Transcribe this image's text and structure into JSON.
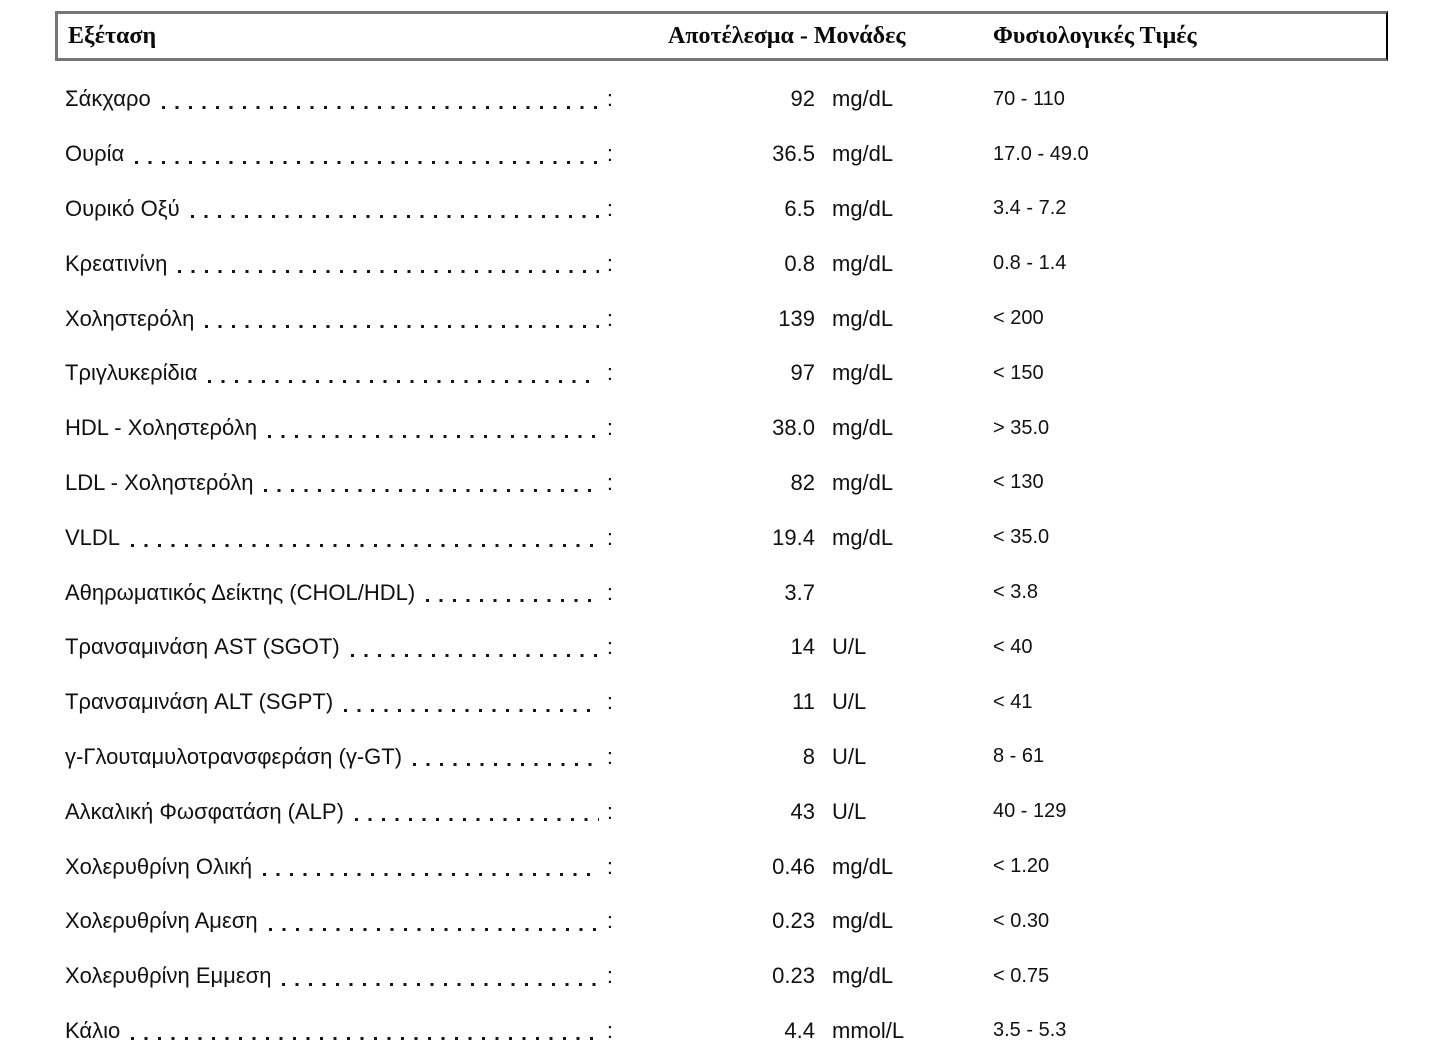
{
  "header": {
    "col_test": "Εξέταση",
    "col_result": "Αποτέλεσμα - Μονάδες",
    "col_range": "Φυσιολογικές Τιμές"
  },
  "separator": ":",
  "rows": [
    {
      "name": "Σάκχαρο",
      "result": "92",
      "unit": "mg/dL",
      "range": "70 - 110"
    },
    {
      "name": "Ουρία",
      "result": "36.5",
      "unit": "mg/dL",
      "range": "17.0 - 49.0"
    },
    {
      "name": "Ουρικό Οξύ",
      "result": "6.5",
      "unit": "mg/dL",
      "range": "3.4 - 7.2"
    },
    {
      "name": "Κρεατινίνη",
      "result": "0.8",
      "unit": "mg/dL",
      "range": "0.8 - 1.4"
    },
    {
      "name": "Χοληστερόλη",
      "result": "139",
      "unit": "mg/dL",
      "range": "< 200"
    },
    {
      "name": "Τριγλυκερίδια",
      "result": "97",
      "unit": "mg/dL",
      "range": "< 150"
    },
    {
      "name": "HDL - Χοληστερόλη",
      "result": "38.0",
      "unit": "mg/dL",
      "range": "> 35.0"
    },
    {
      "name": "LDL - Χοληστερόλη",
      "result": "82",
      "unit": "mg/dL",
      "range": "< 130"
    },
    {
      "name": "VLDL",
      "result": "19.4",
      "unit": "mg/dL",
      "range": "< 35.0"
    },
    {
      "name": "Αθηρωματικός Δείκτης (CHOL/HDL)",
      "result": "3.7",
      "unit": "",
      "range": "< 3.8"
    },
    {
      "name": "Τρανσαμινάση AST (SGOT)",
      "result": "14",
      "unit": "U/L",
      "range": "< 40"
    },
    {
      "name": "Τρανσαμινάση ALT (SGPT)",
      "result": "11",
      "unit": "U/L",
      "range": "< 41"
    },
    {
      "name": "γ-Γλουταμυλοτρανσφεράση (γ-GT)",
      "result": "8",
      "unit": "U/L",
      "range": "8 - 61"
    },
    {
      "name": "Αλκαλική Φωσφατάση (ALP)",
      "result": "43",
      "unit": "U/L",
      "range": "40 - 129"
    },
    {
      "name": "Χολερυθρίνη Ολική",
      "result": "0.46",
      "unit": "mg/dL",
      "range": "< 1.20"
    },
    {
      "name": "Χολερυθρίνη Αμεση",
      "result": "0.23",
      "unit": "mg/dL",
      "range": "< 0.30"
    },
    {
      "name": "Χολερυθρίνη Εμμεση",
      "result": "0.23",
      "unit": "mg/dL",
      "range": "< 0.75"
    },
    {
      "name": "Κάλιο",
      "result": "4.4",
      "unit": "mmol/L",
      "range": "3.5 - 5.3"
    }
  ]
}
